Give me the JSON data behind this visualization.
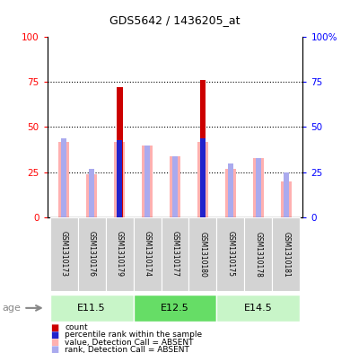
{
  "title": "GDS5642 / 1436205_at",
  "samples": [
    "GSM1310173",
    "GSM1310176",
    "GSM1310179",
    "GSM1310174",
    "GSM1310177",
    "GSM1310180",
    "GSM1310175",
    "GSM1310178",
    "GSM1310181"
  ],
  "groups": [
    {
      "label": "E11.5"
    },
    {
      "label": "E12.5"
    },
    {
      "label": "E14.5"
    }
  ],
  "value_absent": [
    42,
    24,
    42,
    40,
    34,
    42,
    27,
    33,
    20
  ],
  "rank_absent": [
    44,
    27,
    44,
    40,
    34,
    44,
    30,
    33,
    25
  ],
  "count_red": [
    0,
    0,
    72,
    0,
    0,
    76,
    0,
    0,
    0
  ],
  "percentile_blue": [
    0,
    0,
    43,
    0,
    0,
    44,
    0,
    0,
    0
  ],
  "ylim": [
    0,
    100
  ],
  "yticks": [
    0,
    25,
    50,
    75,
    100
  ],
  "color_red": "#cc0000",
  "color_blue": "#2222cc",
  "color_pink": "#ffb0b0",
  "color_lightblue": "#aaaaee",
  "group_colors": [
    "#c8f5c8",
    "#66dd66",
    "#c8f5c8"
  ],
  "legend_items": [
    {
      "label": "count",
      "color": "#cc0000"
    },
    {
      "label": "percentile rank within the sample",
      "color": "#2222cc"
    },
    {
      "label": "value, Detection Call = ABSENT",
      "color": "#ffb0b0"
    },
    {
      "label": "rank, Detection Call = ABSENT",
      "color": "#aaaaee"
    }
  ]
}
